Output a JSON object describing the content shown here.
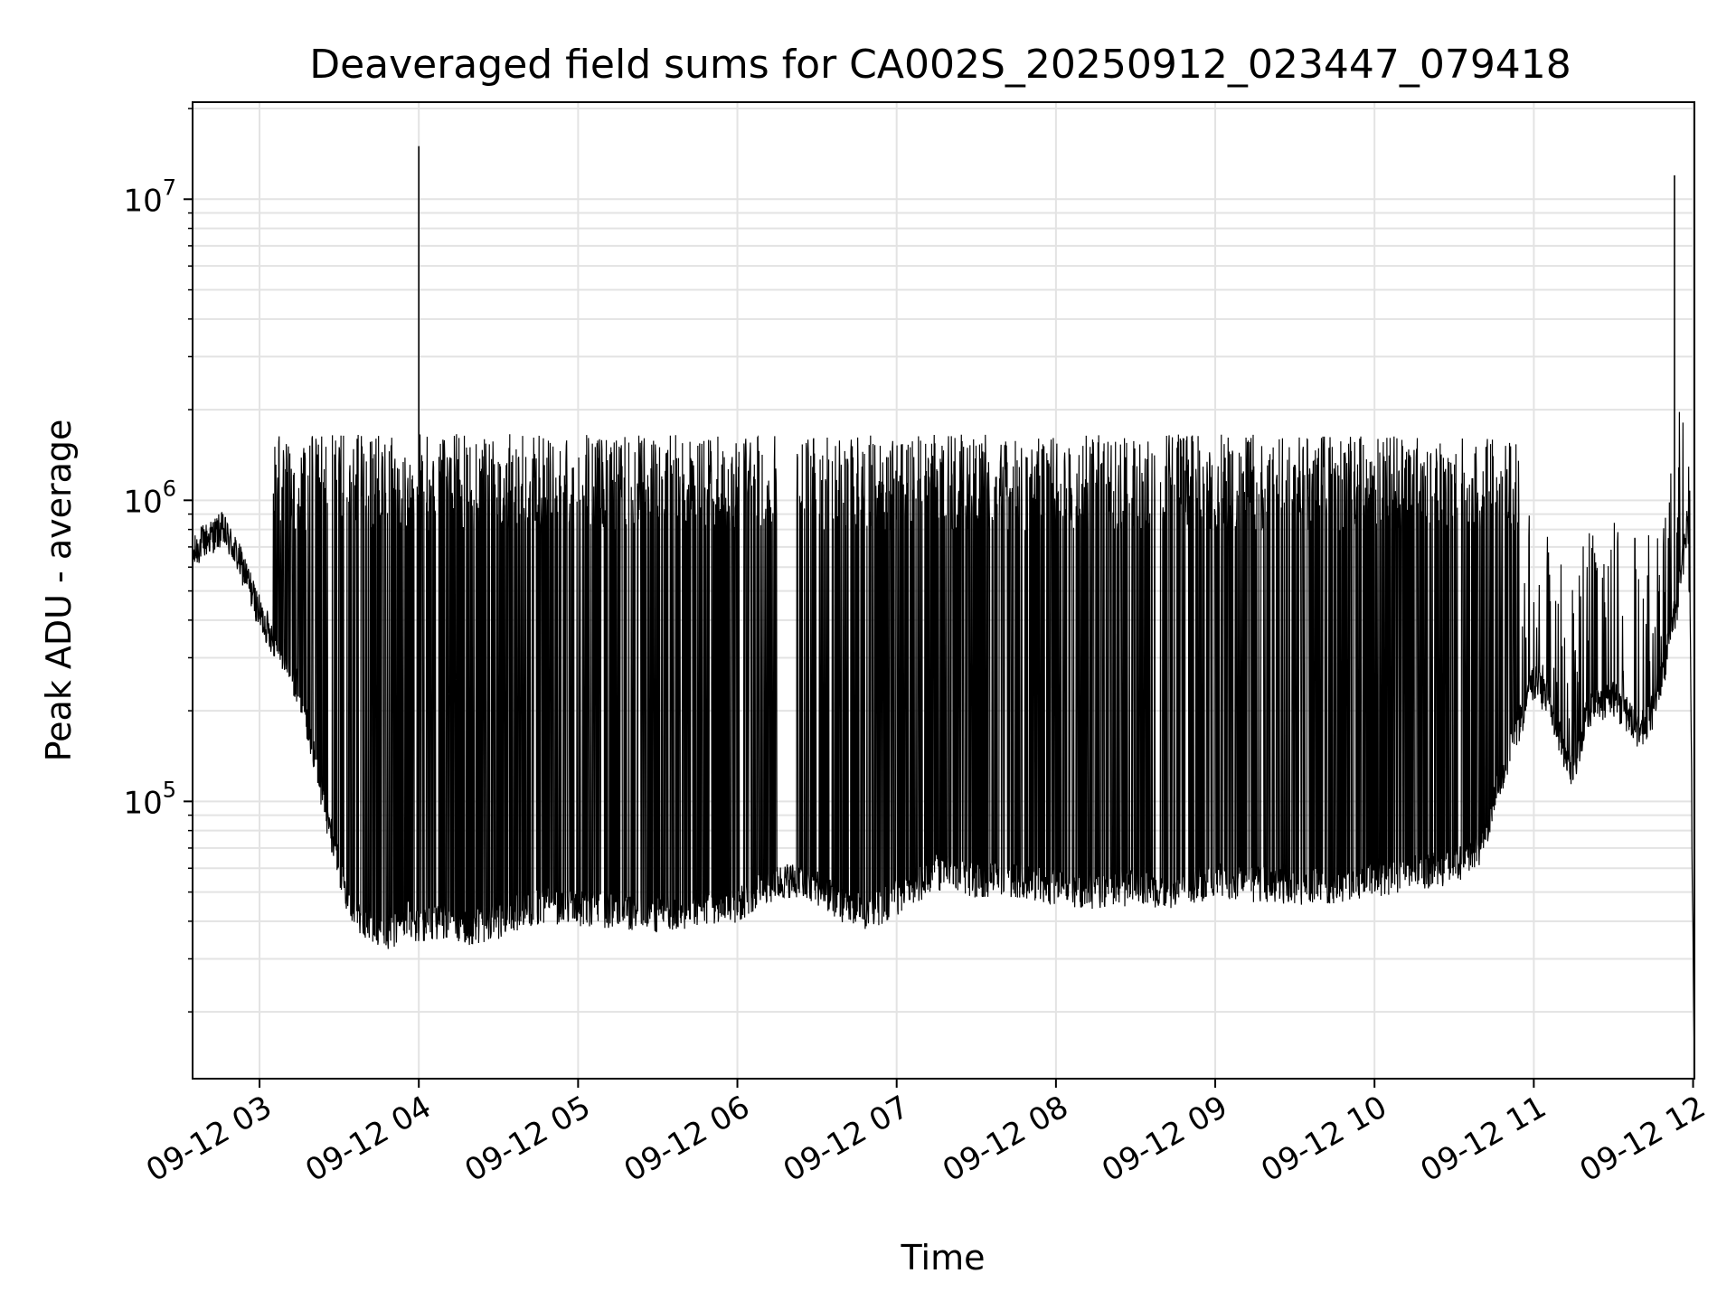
{
  "chart_data": {
    "type": "line",
    "title": "Deaveraged field sums for CA002S_20250912_023447_079418",
    "xlabel": "Time",
    "ylabel": "Peak ADU - average",
    "yscale": "log",
    "ylim": [
      12000,
      21000000
    ],
    "xlim": [
      "2025-09-12 02:34:47",
      "2025-09-12 12:00:30"
    ],
    "grid": true,
    "line_color": "#000000",
    "grid_color": "#e3e3e3",
    "x_ticks": [
      {
        "value": "2025-09-12 03:00",
        "label": "09-12 03"
      },
      {
        "value": "2025-09-12 04:00",
        "label": "09-12 04"
      },
      {
        "value": "2025-09-12 05:00",
        "label": "09-12 05"
      },
      {
        "value": "2025-09-12 06:00",
        "label": "09-12 06"
      },
      {
        "value": "2025-09-12 07:00",
        "label": "09-12 07"
      },
      {
        "value": "2025-09-12 08:00",
        "label": "09-12 08"
      },
      {
        "value": "2025-09-12 09:00",
        "label": "09-12 09"
      },
      {
        "value": "2025-09-12 10:00",
        "label": "09-12 10"
      },
      {
        "value": "2025-09-12 11:00",
        "label": "09-12 11"
      },
      {
        "value": "2025-09-12 12:00",
        "label": "09-12 12"
      }
    ],
    "y_ticks": [
      {
        "value": 100000,
        "base": "10",
        "exp": "5"
      },
      {
        "value": 1000000,
        "base": "10",
        "exp": "6"
      },
      {
        "value": 10000000,
        "base": "10",
        "exp": "7"
      }
    ],
    "series": [
      {
        "points": [
          [
            "2025-09-12 02:34:47",
            650000
          ],
          [
            "2025-09-12 02:38",
            720000
          ],
          [
            "2025-09-12 02:42",
            760000
          ],
          [
            "2025-09-12 02:46",
            800000
          ],
          [
            "2025-09-12 02:50",
            700000
          ],
          [
            "2025-09-12 02:55",
            560000
          ],
          [
            "2025-09-12 03:00",
            420000
          ],
          [
            "2025-09-12 03:05",
            350000
          ],
          [
            "2025-09-12 03:10",
            300000
          ],
          [
            "2025-09-12 03:15",
            230000
          ],
          [
            "2025-09-12 03:20",
            150000
          ],
          [
            "2025-09-12 03:25",
            90000
          ],
          [
            "2025-09-12 03:30",
            60000
          ],
          [
            "2025-09-12 03:35",
            42000
          ],
          [
            "2025-09-12 03:40",
            40000
          ],
          [
            "2025-09-12 03:45",
            38000
          ],
          [
            "2025-09-12 03:50",
            36000
          ],
          [
            "2025-09-12 03:55",
            42000
          ],
          [
            "2025-09-12 04:00",
            38000
          ],
          [
            "2025-09-12 04:10",
            40000
          ],
          [
            "2025-09-12 04:20",
            38000
          ],
          [
            "2025-09-12 04:30",
            40000
          ],
          [
            "2025-09-12 04:40",
            44000
          ],
          [
            "2025-09-12 04:50",
            45000
          ],
          [
            "2025-09-12 05:00",
            44000
          ],
          [
            "2025-09-12 05:15",
            43000
          ],
          [
            "2025-09-12 05:30",
            42000
          ],
          [
            "2025-09-12 05:45",
            44000
          ],
          [
            "2025-09-12 06:00",
            45000
          ],
          [
            "2025-09-12 06:10",
            52000
          ],
          [
            "2025-09-12 06:20",
            55000
          ],
          [
            "2025-09-12 06:30",
            52000
          ],
          [
            "2025-09-12 06:40",
            45000
          ],
          [
            "2025-09-12 06:50",
            42000
          ],
          [
            "2025-09-12 07:00",
            48000
          ],
          [
            "2025-09-12 07:15",
            58000
          ],
          [
            "2025-09-12 07:30",
            55000
          ],
          [
            "2025-09-12 07:45",
            55000
          ],
          [
            "2025-09-12 08:00",
            52000
          ],
          [
            "2025-09-12 08:15",
            50000
          ],
          [
            "2025-09-12 08:30",
            52000
          ],
          [
            "2025-09-12 08:45",
            50000
          ],
          [
            "2025-09-12 09:00",
            55000
          ],
          [
            "2025-09-12 09:15",
            53000
          ],
          [
            "2025-09-12 09:30",
            52000
          ],
          [
            "2025-09-12 09:45",
            52000
          ],
          [
            "2025-09-12 10:00",
            55000
          ],
          [
            "2025-09-12 10:15",
            58000
          ],
          [
            "2025-09-12 10:30",
            60000
          ],
          [
            "2025-09-12 10:40",
            70000
          ],
          [
            "2025-09-12 10:50",
            140000
          ],
          [
            "2025-09-12 11:00",
            250000
          ],
          [
            "2025-09-12 11:05",
            220000
          ],
          [
            "2025-09-12 11:10",
            160000
          ],
          [
            "2025-09-12 11:15",
            120000
          ],
          [
            "2025-09-12 11:20",
            200000
          ],
          [
            "2025-09-12 11:30",
            220000
          ],
          [
            "2025-09-12 11:40",
            170000
          ],
          [
            "2025-09-12 11:45",
            200000
          ],
          [
            "2025-09-12 11:50",
            300000
          ],
          [
            "2025-09-12 11:55",
            500000
          ],
          [
            "2025-09-12 11:58",
            900000
          ],
          [
            "2025-09-12 11:59",
            350000
          ],
          [
            "2025-09-12 11:59:40",
            60000
          ],
          [
            "2025-09-12 12:00:30",
            15000
          ]
        ],
        "spikes": [
          [
            "2025-09-12 04:00",
            15000000
          ],
          [
            "2025-09-12 11:53",
            12000000
          ]
        ]
      }
    ]
  }
}
